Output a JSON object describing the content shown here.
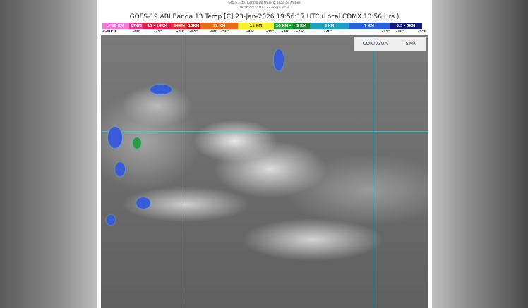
{
  "header": {
    "subtitle1": "GOES Este, Centro de México, Tope de Nubes",
    "subtitle2": "19:56 hrs. (UTC) 23 enero 2026",
    "title": "GOES-19 ABI Banda 13 Temp.[C] 23-Jan-2026 19:56:17 UTC (Local CDMX  13:56 Hrs.)"
  },
  "colorbar": {
    "segments": [
      {
        "label": "> 18 KM",
        "color": "#f07ad8"
      },
      {
        "label": "17KM",
        "color": "#e83c8c"
      },
      {
        "label": "15 - 16KM",
        "color": "#e0204a"
      },
      {
        "label": "14KM",
        "color": "#e03030"
      },
      {
        "label": "13KM",
        "color": "#b81818"
      },
      {
        "label": "12 KM",
        "color": "#e86a18"
      },
      {
        "label": "11 KM",
        "color": "#f6f02c"
      },
      {
        "label": "10 KM -",
        "color": "#28a83c"
      },
      {
        "label": "9 KM",
        "color": "#1c8030"
      },
      {
        "label": "8 KM",
        "color": "#20a0c0"
      },
      {
        "label": "7 KM",
        "color": "#2860d8"
      },
      {
        "label": "3.5 - 5KM",
        "color": "#101c78"
      }
    ],
    "ticks": [
      "<-80° C",
      "-80°",
      "-75°",
      "-70°",
      "-65°",
      "-60°",
      "-50°",
      "-45°",
      "-35°",
      "-30°",
      "-25°",
      "-20°",
      "-15°",
      "-10°",
      "-5°",
      "C"
    ]
  },
  "logos": {
    "conagua": "CONAGUA",
    "smn": "SMN"
  }
}
